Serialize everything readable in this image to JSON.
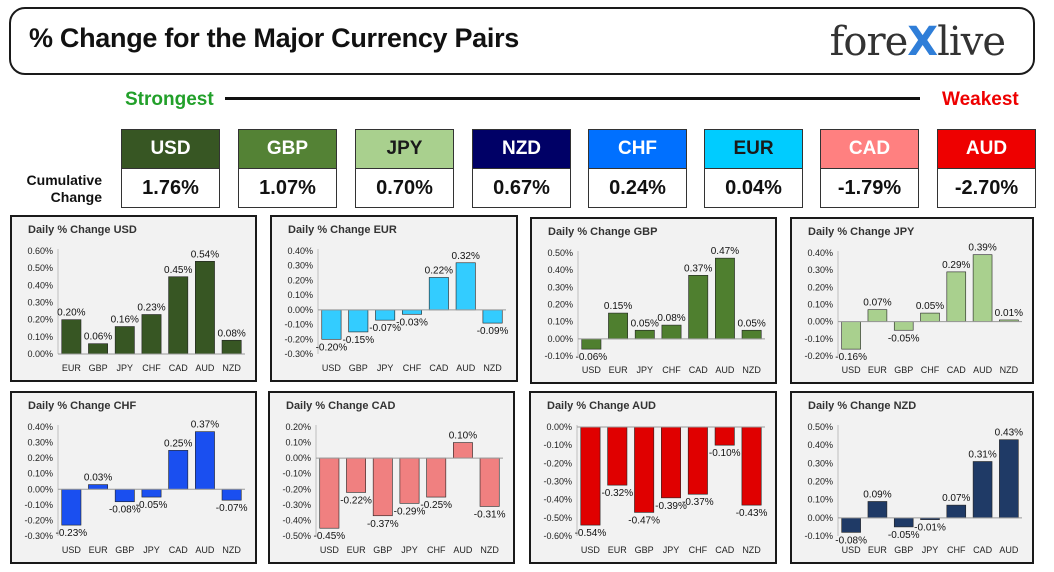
{
  "header": {
    "title": "% Change for the Major Currency Pairs",
    "logo_left": "fore",
    "logo_x": "X",
    "logo_right": "live"
  },
  "ranking": {
    "strongest_label": "Strongest",
    "weakest_label": "Weakest",
    "cumulative_label_1": "Cumulative",
    "cumulative_label_2": "Change",
    "currencies": [
      {
        "name": "USD",
        "value": "1.76%",
        "bg": "#375623",
        "fg": "#ffffff"
      },
      {
        "name": "GBP",
        "value": "1.07%",
        "bg": "#548235",
        "fg": "#ffffff"
      },
      {
        "name": "JPY",
        "value": "0.70%",
        "bg": "#a9d08e",
        "fg": "#1a1a1a"
      },
      {
        "name": "NZD",
        "value": "0.67%",
        "bg": "#000066",
        "fg": "#ffffff"
      },
      {
        "name": "CHF",
        "value": "0.24%",
        "bg": "#0070ff",
        "fg": "#ffffff"
      },
      {
        "name": "EUR",
        "value": "0.04%",
        "bg": "#00ccff",
        "fg": "#1a1a1a"
      },
      {
        "name": "CAD",
        "value": "-1.79%",
        "bg": "#ff8080",
        "fg": "#ffffff"
      },
      {
        "name": "AUD",
        "value": "-2.70%",
        "bg": "#ee0000",
        "fg": "#ffffff"
      }
    ]
  },
  "chart_data": [
    {
      "type": "bar",
      "title": "Daily % Change USD",
      "categories": [
        "EUR",
        "GBP",
        "JPY",
        "CHF",
        "CAD",
        "AUD",
        "NZD"
      ],
      "values": [
        0.2,
        0.06,
        0.16,
        0.23,
        0.45,
        0.54,
        0.08
      ],
      "labels": [
        "0.20%",
        "0.06%",
        "0.16%",
        "0.23%",
        "0.45%",
        "0.54%",
        "0.08%"
      ],
      "ylim": [
        0,
        0.6
      ],
      "yticks": [
        "0.00%",
        "0.10%",
        "0.20%",
        "0.30%",
        "0.40%",
        "0.50%",
        "0.60%"
      ],
      "color": "#375623"
    },
    {
      "type": "bar",
      "title": "Daily % Change EUR",
      "categories": [
        "USD",
        "GBP",
        "JPY",
        "CHF",
        "CAD",
        "AUD",
        "NZD"
      ],
      "values": [
        -0.2,
        -0.15,
        -0.07,
        -0.03,
        0.22,
        0.32,
        -0.09
      ],
      "labels": [
        "-0.20%",
        "-0.15%",
        "-0.07%",
        "-0.03%",
        "0.22%",
        "0.32%",
        "-0.09%"
      ],
      "ylim": [
        -0.3,
        0.4
      ],
      "yticks": [
        "-0.30%",
        "-0.20%",
        "-0.10%",
        "0.00%",
        "0.10%",
        "0.20%",
        "0.30%",
        "0.40%"
      ],
      "color": "#33ccff"
    },
    {
      "type": "bar",
      "title": "Daily % Change GBP",
      "categories": [
        "USD",
        "EUR",
        "JPY",
        "CHF",
        "CAD",
        "AUD",
        "NZD"
      ],
      "values": [
        -0.06,
        0.15,
        0.05,
        0.08,
        0.37,
        0.47,
        0.05
      ],
      "labels": [
        "-0.06%",
        "0.15%",
        "0.05%",
        "0.08%",
        "0.37%",
        "0.47%",
        "0.05%"
      ],
      "ylim": [
        -0.1,
        0.5
      ],
      "yticks": [
        "-0.10%",
        "0.00%",
        "0.10%",
        "0.20%",
        "0.30%",
        "0.40%",
        "0.50%"
      ],
      "color": "#4f7f2f"
    },
    {
      "type": "bar",
      "title": "Daily % Change JPY",
      "categories": [
        "USD",
        "EUR",
        "GBP",
        "CHF",
        "CAD",
        "AUD",
        "NZD"
      ],
      "values": [
        -0.16,
        0.07,
        -0.05,
        0.05,
        0.29,
        0.39,
        0.01
      ],
      "labels": [
        "-0.16%",
        "0.07%",
        "-0.05%",
        "0.05%",
        "0.29%",
        "0.39%",
        "0.01%"
      ],
      "ylim": [
        -0.2,
        0.4
      ],
      "yticks": [
        "-0.20%",
        "-0.10%",
        "0.00%",
        "0.10%",
        "0.20%",
        "0.30%",
        "0.40%"
      ],
      "color": "#a9d08e"
    },
    {
      "type": "bar",
      "title": "Daily % Change CHF",
      "categories": [
        "USD",
        "EUR",
        "GBP",
        "JPY",
        "CAD",
        "AUD",
        "NZD"
      ],
      "values": [
        -0.23,
        0.03,
        -0.08,
        -0.05,
        0.25,
        0.37,
        -0.07
      ],
      "labels": [
        "-0.23%",
        "0.03%",
        "-0.08%",
        "-0.05%",
        "0.25%",
        "0.37%",
        "-0.07%"
      ],
      "ylim": [
        -0.3,
        0.4
      ],
      "yticks": [
        "-0.30%",
        "-0.20%",
        "-0.10%",
        "0.00%",
        "0.10%",
        "0.20%",
        "0.30%",
        "0.40%"
      ],
      "color": "#1a4ff0"
    },
    {
      "type": "bar",
      "title": "Daily % Change CAD",
      "categories": [
        "USD",
        "EUR",
        "GBP",
        "JPY",
        "CHF",
        "AUD",
        "NZD"
      ],
      "values": [
        -0.45,
        -0.22,
        -0.37,
        -0.29,
        -0.25,
        0.1,
        -0.31
      ],
      "labels": [
        "-0.45%",
        "-0.22%",
        "-0.37%",
        "-0.29%",
        "-0.25%",
        "0.10%",
        "-0.31%"
      ],
      "ylim": [
        -0.5,
        0.2
      ],
      "yticks": [
        "-0.50%",
        "-0.40%",
        "-0.30%",
        "-0.20%",
        "-0.10%",
        "0.00%",
        "0.10%",
        "0.20%"
      ],
      "color": "#f08080"
    },
    {
      "type": "bar",
      "title": "Daily % Change AUD",
      "categories": [
        "USD",
        "EUR",
        "GBP",
        "JPY",
        "CHF",
        "CAD",
        "NZD"
      ],
      "values": [
        -0.54,
        -0.32,
        -0.47,
        -0.39,
        -0.37,
        -0.1,
        -0.43
      ],
      "labels": [
        "-0.54%",
        "-0.32%",
        "-0.47%",
        "-0.39%",
        "-0.37%",
        "-0.10%",
        "-0.43%"
      ],
      "ylim": [
        -0.6,
        0.0
      ],
      "yticks": [
        "-0.60%",
        "-0.50%",
        "-0.40%",
        "-0.30%",
        "-0.20%",
        "-0.10%",
        "0.00%"
      ],
      "color": "#e00000"
    },
    {
      "type": "bar",
      "title": "Daily % Change NZD",
      "categories": [
        "USD",
        "EUR",
        "GBP",
        "JPY",
        "CHF",
        "CAD",
        "AUD"
      ],
      "values": [
        -0.08,
        0.09,
        -0.05,
        -0.01,
        0.07,
        0.31,
        0.43
      ],
      "labels": [
        "-0.08%",
        "0.09%",
        "-0.05%",
        "-0.01%",
        "0.07%",
        "0.31%",
        "0.43%"
      ],
      "ylim": [
        -0.1,
        0.5
      ],
      "yticks": [
        "-0.10%",
        "0.00%",
        "0.10%",
        "0.20%",
        "0.30%",
        "0.40%",
        "0.50%"
      ],
      "color": "#1f3a66"
    }
  ]
}
